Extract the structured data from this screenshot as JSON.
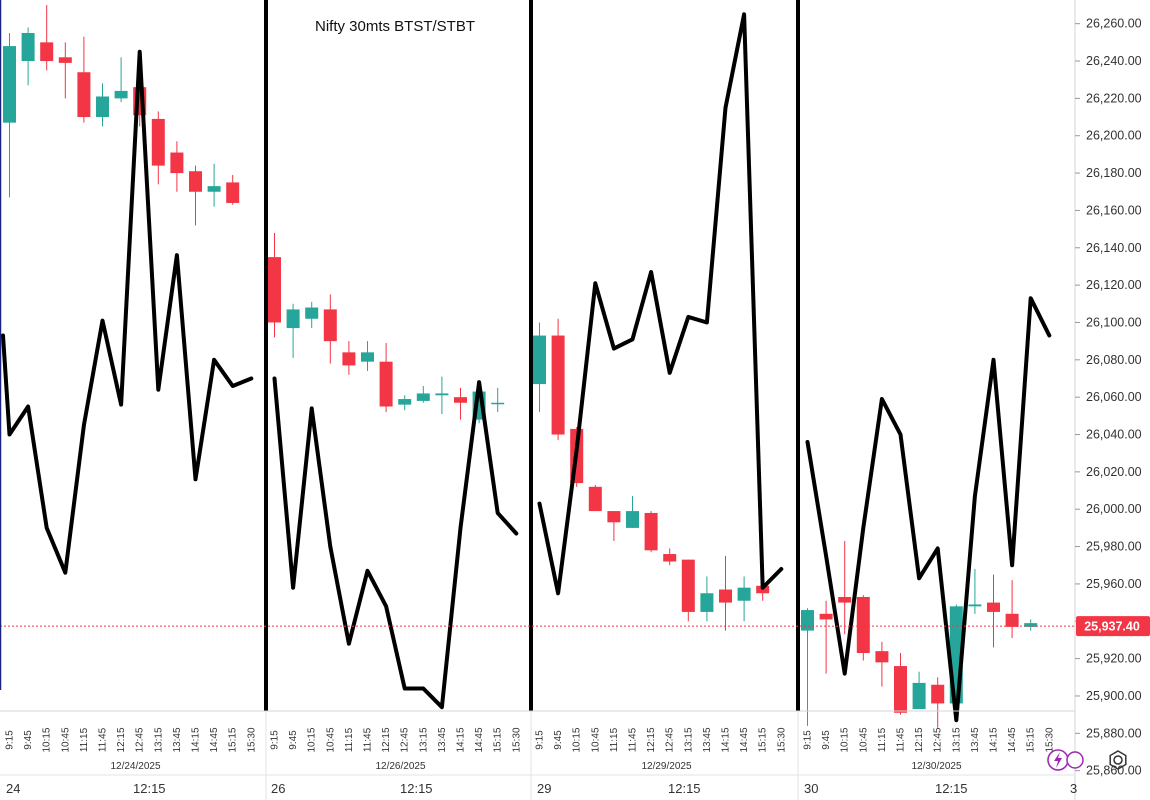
{
  "chart_data": {
    "type": "candlestick",
    "title": "Nifty 30mts BTST/STBT",
    "colors": {
      "up": "#26a69a",
      "down": "#f23645",
      "overlay_line": "#000000",
      "current_price_line": "#f23645"
    },
    "y_axis": {
      "side": "right",
      "range": [
        25855,
        26270
      ],
      "ticks": [
        "26,260.00",
        "26,240.00",
        "26,220.00",
        "26,200.00",
        "26,180.00",
        "26,160.00",
        "26,140.00",
        "26,120.00",
        "26,100.00",
        "26,080.00",
        "26,060.00",
        "26,040.00",
        "26,020.00",
        "26,000.00",
        "25,980.00",
        "25,960.00",
        "25,940.00",
        "25,920.00",
        "25,900.00",
        "25,880.00",
        "25,860.00"
      ]
    },
    "current_price": {
      "value": 25937.4,
      "label": "25,937.40"
    },
    "sessions": [
      {
        "date_label": "12/24/2025",
        "bottom_label": "24",
        "times": [
          "9:15",
          "9:45",
          "10:15",
          "10:45",
          "11:15",
          "11:45",
          "12:15",
          "12:45",
          "13:15",
          "13:45",
          "14:15",
          "14:45",
          "15:15",
          "15:30"
        ],
        "candles": [
          {
            "o": 26207,
            "h": 26255,
            "l": 26167,
            "c": 26248
          },
          {
            "o": 26240,
            "h": 26258,
            "l": 26227,
            "c": 26255
          },
          {
            "o": 26250,
            "h": 26270,
            "l": 26235,
            "c": 26240
          },
          {
            "o": 26242,
            "h": 26250,
            "l": 26220,
            "c": 26239
          },
          {
            "o": 26234,
            "h": 26253,
            "l": 26207,
            "c": 26210
          },
          {
            "o": 26210,
            "h": 26228,
            "l": 26205,
            "c": 26221
          },
          {
            "o": 26220,
            "h": 26242,
            "l": 26218,
            "c": 26224
          },
          {
            "o": 26226,
            "h": 26229,
            "l": 26205,
            "c": 26211
          },
          {
            "o": 26209,
            "h": 26213,
            "l": 26174,
            "c": 26184
          },
          {
            "o": 26191,
            "h": 26197,
            "l": 26170,
            "c": 26180
          },
          {
            "o": 26181,
            "h": 26184,
            "l": 26152,
            "c": 26170
          },
          {
            "o": 26170,
            "h": 26185,
            "l": 26162,
            "c": 26173
          },
          {
            "o": 26175,
            "h": 26179,
            "l": 26163,
            "c": 26164
          }
        ]
      },
      {
        "date_label": "12/26/2025",
        "bottom_label": "26",
        "times": [
          "9:15",
          "9:45",
          "10:15",
          "10:45",
          "11:15",
          "11:45",
          "12:15",
          "12:45",
          "13:15",
          "13:45",
          "14:15",
          "14:45",
          "15:15",
          "15:30"
        ],
        "candles": [
          {
            "o": 26135,
            "h": 26148,
            "l": 26092,
            "c": 26100
          },
          {
            "o": 26097,
            "h": 26110,
            "l": 26081,
            "c": 26107
          },
          {
            "o": 26102,
            "h": 26111,
            "l": 26097,
            "c": 26108
          },
          {
            "o": 26107,
            "h": 26115,
            "l": 26078,
            "c": 26090
          },
          {
            "o": 26084,
            "h": 26090,
            "l": 26072,
            "c": 26077
          },
          {
            "o": 26079,
            "h": 26090,
            "l": 26074,
            "c": 26084
          },
          {
            "o": 26079,
            "h": 26089,
            "l": 26052,
            "c": 26055
          },
          {
            "o": 26056,
            "h": 26061,
            "l": 26053,
            "c": 26059
          },
          {
            "o": 26058,
            "h": 26066,
            "l": 26057,
            "c": 26062
          },
          {
            "o": 26061,
            "h": 26071,
            "l": 26051,
            "c": 26062
          },
          {
            "o": 26060,
            "h": 26065,
            "l": 26048,
            "c": 26057
          },
          {
            "o": 26048,
            "h": 26065,
            "l": 26046,
            "c": 26063
          },
          {
            "o": 26057,
            "h": 26065,
            "l": 26052,
            "c": 26057
          }
        ]
      },
      {
        "date_label": "12/29/2025",
        "bottom_label": "29",
        "times": [
          "9:15",
          "9:45",
          "10:15",
          "10:45",
          "11:15",
          "11:45",
          "12:15",
          "12:45",
          "13:15",
          "13:45",
          "14:15",
          "14:45",
          "15:15",
          "15:30"
        ],
        "candles": [
          {
            "o": 26067,
            "h": 26100,
            "l": 26052,
            "c": 26093
          },
          {
            "o": 26093,
            "h": 26102,
            "l": 26037,
            "c": 26040
          },
          {
            "o": 26043,
            "h": 26044,
            "l": 26012,
            "c": 26014
          },
          {
            "o": 26012,
            "h": 26013,
            "l": 25999,
            "c": 25999
          },
          {
            "o": 25999,
            "h": 25999,
            "l": 25983,
            "c": 25993
          },
          {
            "o": 25990,
            "h": 26007,
            "l": 25990,
            "c": 25999
          },
          {
            "o": 25998,
            "h": 25999,
            "l": 25977,
            "c": 25978
          },
          {
            "o": 25976,
            "h": 25979,
            "l": 25970,
            "c": 25972
          },
          {
            "o": 25973,
            "h": 25973,
            "l": 25940,
            "c": 25945
          },
          {
            "o": 25945,
            "h": 25964,
            "l": 25940,
            "c": 25955
          },
          {
            "o": 25957,
            "h": 25975,
            "l": 25935,
            "c": 25950
          },
          {
            "o": 25951,
            "h": 25964,
            "l": 25940,
            "c": 25958
          },
          {
            "o": 25959,
            "h": 25962,
            "l": 25951,
            "c": 25955
          }
        ]
      },
      {
        "date_label": "12/30/2025",
        "bottom_label": "30",
        "times": [
          "9:15",
          "9:45",
          "10:15",
          "10:45",
          "11:15",
          "11:45",
          "12:15",
          "12:45",
          "13:15",
          "13:45",
          "14:15",
          "14:45",
          "15:15",
          "15:30"
        ],
        "candles": [
          {
            "o": 25935,
            "h": 25947,
            "l": 25884,
            "c": 25946
          },
          {
            "o": 25944,
            "h": 25951,
            "l": 25912,
            "c": 25941
          },
          {
            "o": 25953,
            "h": 25983,
            "l": 25933,
            "c": 25950
          },
          {
            "o": 25953,
            "h": 25954,
            "l": 25919,
            "c": 25923
          },
          {
            "o": 25924,
            "h": 25929,
            "l": 25905,
            "c": 25918
          },
          {
            "o": 25916,
            "h": 25923,
            "l": 25890,
            "c": 25891
          },
          {
            "o": 25893,
            "h": 25913,
            "l": 25893,
            "c": 25907
          },
          {
            "o": 25906,
            "h": 25910,
            "l": 25883,
            "c": 25896
          },
          {
            "o": 25896,
            "h": 25949,
            "l": 25888,
            "c": 25948
          },
          {
            "o": 25948,
            "h": 25968,
            "l": 25944,
            "c": 25949
          },
          {
            "o": 25950,
            "h": 25965,
            "l": 25926,
            "c": 25945
          },
          {
            "o": 25944,
            "h": 25962,
            "l": 25931,
            "c": 25937
          },
          {
            "o": 25937,
            "h": 25941,
            "l": 25935,
            "c": 25939
          }
        ]
      }
    ],
    "bottom_axis": {
      "labels": [
        {
          "text": "24",
          "session": 0,
          "pos": "start"
        },
        {
          "text": "12:15",
          "session": 0,
          "pos": "mid"
        },
        {
          "text": "26",
          "session": 1,
          "pos": "start"
        },
        {
          "text": "12:15",
          "session": 1,
          "pos": "mid"
        },
        {
          "text": "29",
          "session": 2,
          "pos": "start"
        },
        {
          "text": "12:15",
          "session": 2,
          "pos": "mid"
        },
        {
          "text": "30",
          "session": 3,
          "pos": "start"
        },
        {
          "text": "12:15",
          "session": 3,
          "pos": "mid"
        },
        {
          "text": "3",
          "session": 3,
          "pos": "end"
        }
      ]
    },
    "overlay": {
      "description": "",
      "points": [
        [
          26093,
          26040,
          26055,
          25990,
          25966,
          26045,
          26101,
          26056,
          26245,
          26064,
          26136,
          26016,
          26080,
          26066,
          26070
        ],
        [
          26070,
          25958,
          26054,
          25980,
          25928,
          25967,
          25948,
          25904,
          25904,
          25894,
          25990,
          26068,
          25998,
          25987
        ],
        [
          26003,
          25955,
          26032,
          26121,
          26086,
          26091,
          26127,
          26073,
          26103,
          26100,
          26215,
          26265,
          25958,
          25968
        ],
        [
          26036,
          25975,
          25912,
          25990,
          26059,
          26040,
          25963,
          25979,
          25887,
          26007,
          26080,
          25970,
          26113,
          26093
        ]
      ]
    }
  },
  "ui": {
    "icon_settings": "gear-icon",
    "icon_badge": "lightning-icon"
  }
}
